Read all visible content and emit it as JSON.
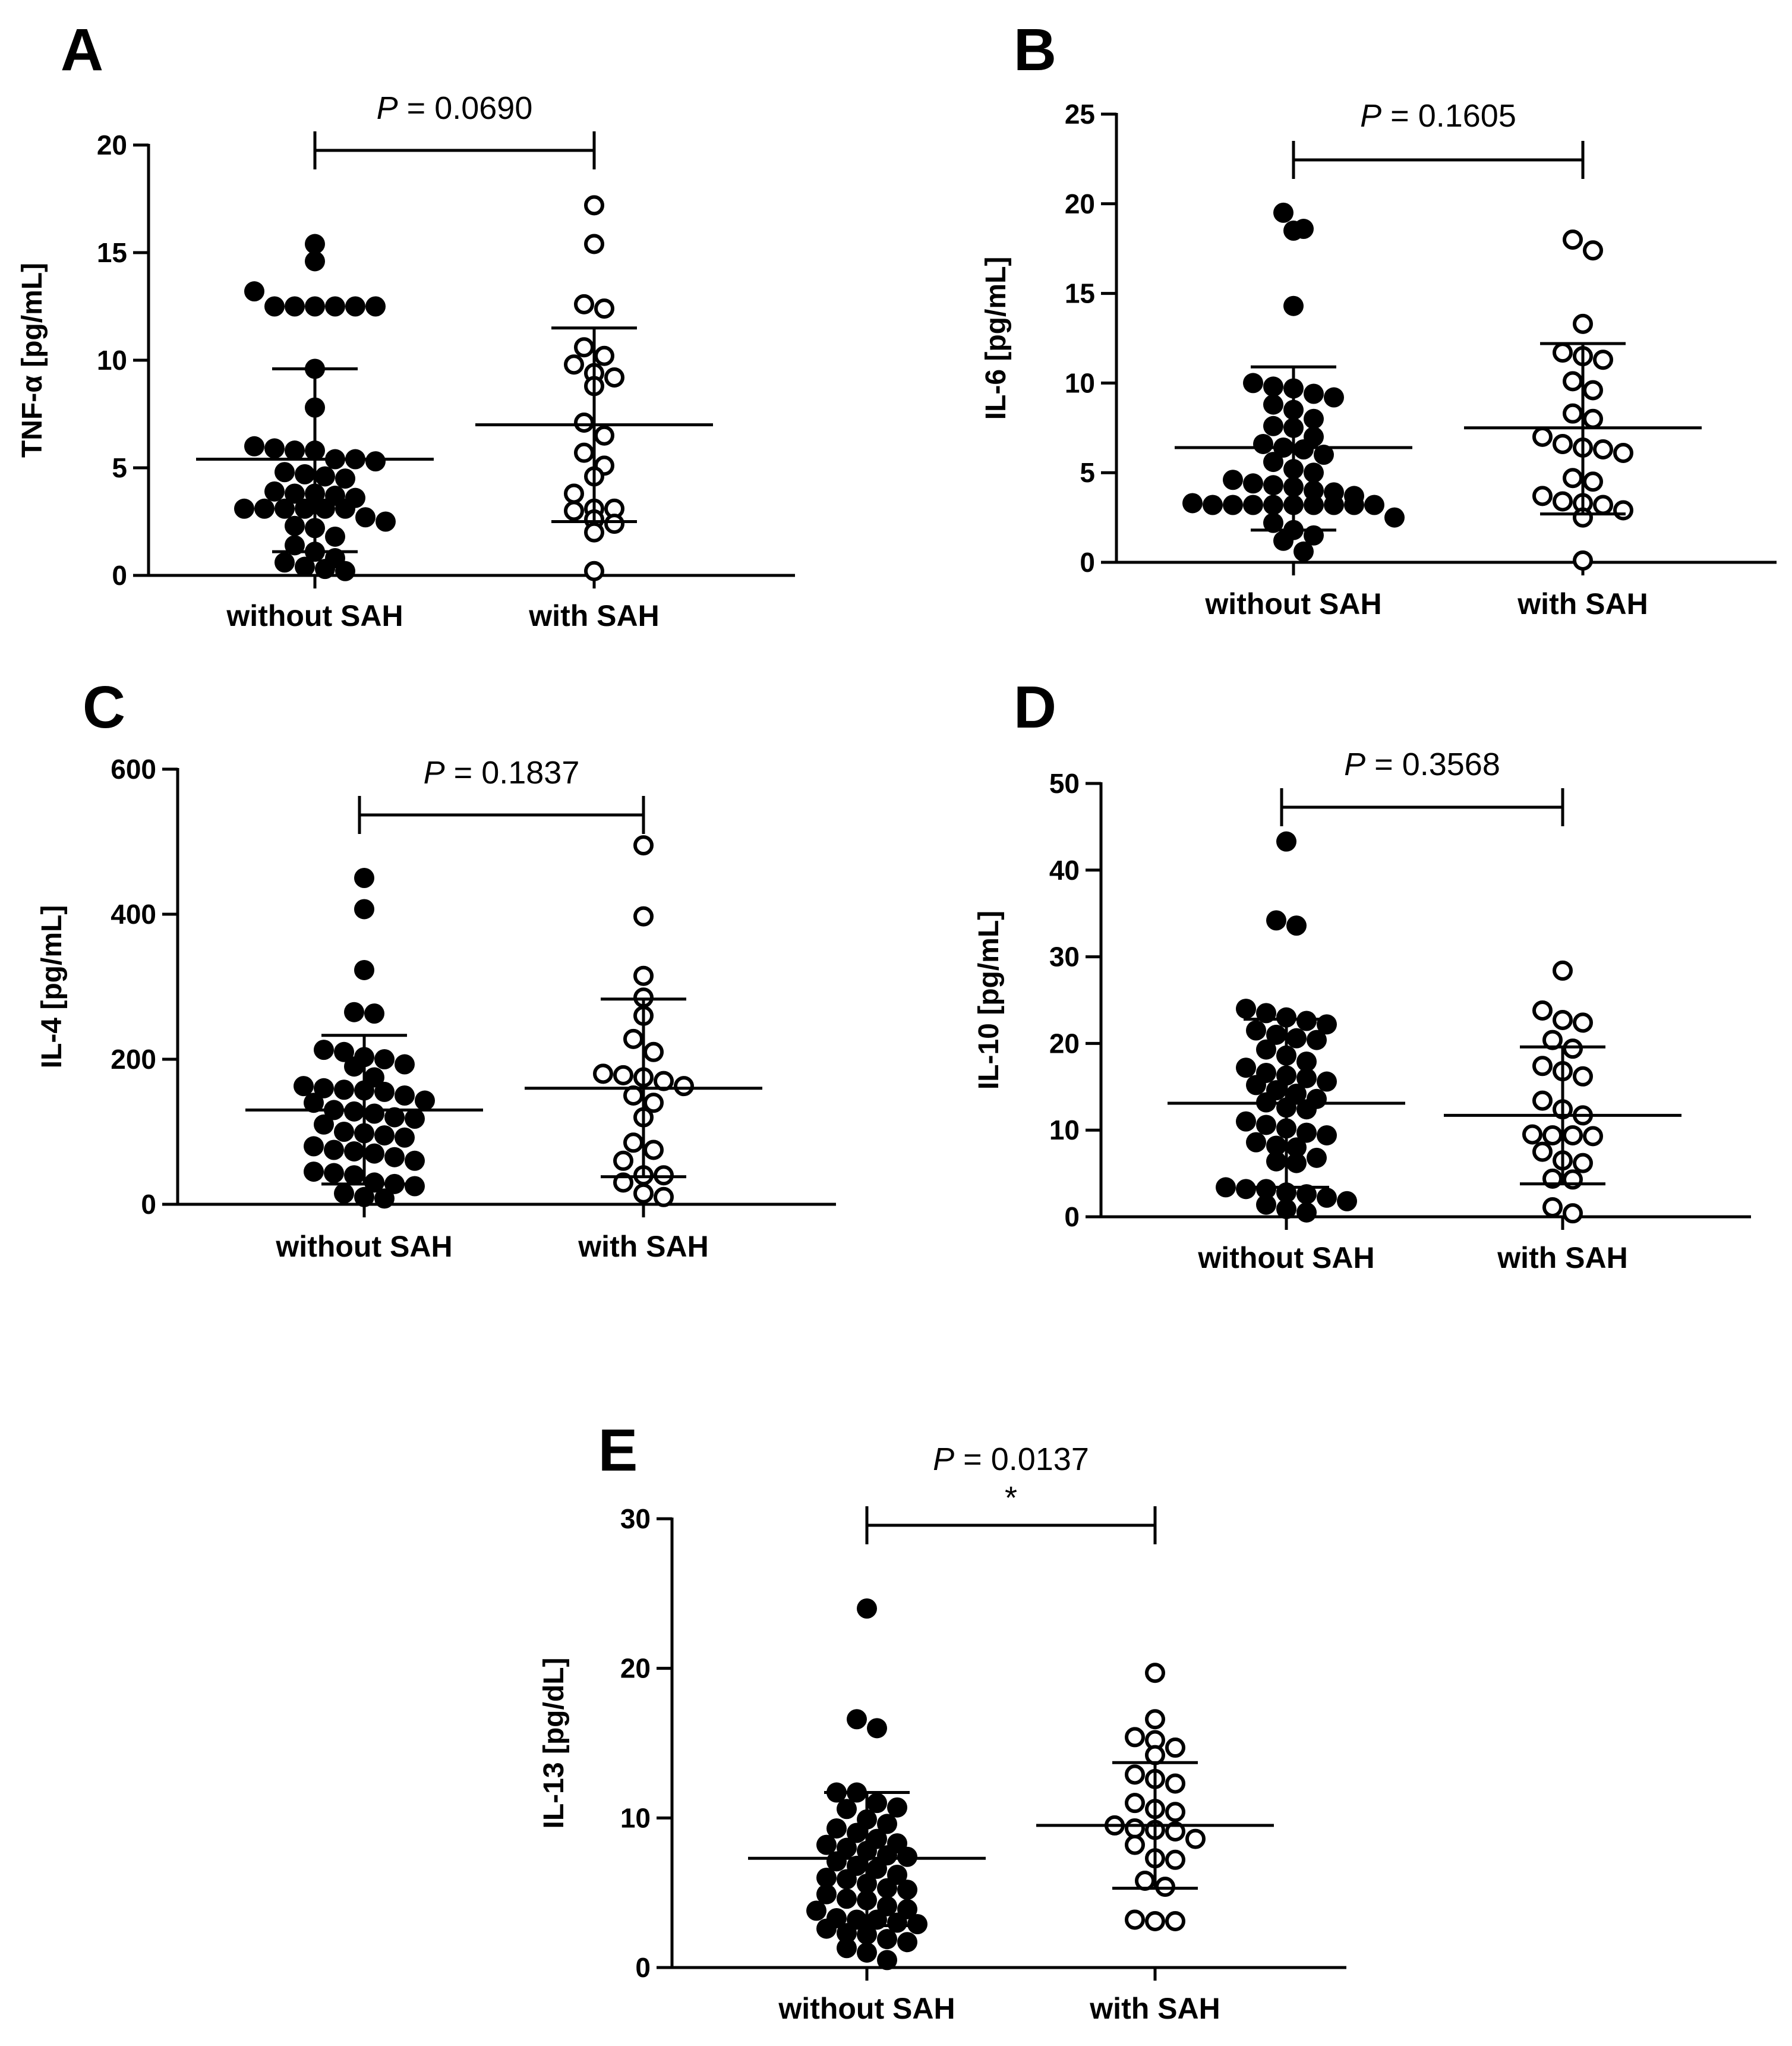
{
  "chart_data": [
    {
      "type": "scatter",
      "panel": "A",
      "ylabel": "TNF-α [pg/mL]",
      "ylim": [
        0,
        20
      ],
      "yticks": [
        0,
        5,
        10,
        15,
        20
      ],
      "categories": [
        "without SAH",
        "with SAH"
      ],
      "p_value_prefix": "P",
      "p_value_text": " = 0.0690",
      "significance": "",
      "series": [
        {
          "name": "without SAH",
          "marker": "filled",
          "mean": 5.4,
          "sd_low": 1.1,
          "sd_high": 9.6,
          "values": [
            15.4,
            14.6,
            13.2,
            12.5,
            12.5,
            12.5,
            12.5,
            12.5,
            12.5,
            9.6,
            7.8,
            6.0,
            5.9,
            5.8,
            5.8,
            5.4,
            5.4,
            5.3,
            4.8,
            4.7,
            4.6,
            4.5,
            3.9,
            3.8,
            3.8,
            3.7,
            3.6,
            3.1,
            3.1,
            3.1,
            3.1,
            3.1,
            3.1,
            2.7,
            2.5,
            2.3,
            2.2,
            1.8,
            1.4,
            1.1,
            0.8,
            0.6,
            0.4,
            0.3,
            0.2
          ]
        },
        {
          "name": "with SAH",
          "marker": "open",
          "mean": 7.0,
          "sd_low": 2.5,
          "sd_high": 11.5,
          "values": [
            17.2,
            15.4,
            12.6,
            12.4,
            10.6,
            10.2,
            9.8,
            9.4,
            9.2,
            8.8,
            7.1,
            6.5,
            5.7,
            5.1,
            4.6,
            3.8,
            3.1,
            3.1,
            3.0,
            2.6,
            2.4,
            2.0,
            0.2
          ]
        }
      ]
    },
    {
      "type": "scatter",
      "panel": "B",
      "ylabel": "IL-6 [pg/mL]",
      "ylim": [
        0,
        25
      ],
      "yticks": [
        0,
        5,
        10,
        15,
        20,
        25
      ],
      "categories": [
        "without SAH",
        "with SAH"
      ],
      "p_value_prefix": "P",
      "p_value_text": " = 0.1605",
      "significance": "",
      "series": [
        {
          "name": "without SAH",
          "marker": "filled",
          "mean": 6.4,
          "sd_low": 1.8,
          "sd_high": 10.9,
          "values": [
            19.5,
            18.6,
            18.5,
            14.3,
            10.0,
            9.8,
            9.7,
            9.4,
            9.2,
            8.8,
            8.5,
            8.0,
            7.6,
            7.5,
            7.0,
            6.6,
            6.4,
            6.3,
            6.0,
            5.6,
            5.2,
            5.0,
            4.6,
            4.4,
            4.3,
            4.2,
            4.0,
            3.9,
            3.7,
            3.3,
            3.2,
            3.2,
            3.2,
            3.2,
            3.2,
            3.2,
            3.2,
            3.2,
            3.2,
            2.5,
            2.2,
            1.8,
            1.5,
            1.2,
            0.6
          ]
        },
        {
          "name": "with SAH",
          "marker": "open",
          "mean": 7.5,
          "sd_low": 2.7,
          "sd_high": 12.2,
          "values": [
            18.0,
            17.4,
            13.3,
            11.7,
            11.5,
            11.3,
            10.1,
            9.6,
            8.3,
            8.0,
            7.0,
            6.6,
            6.4,
            6.3,
            6.1,
            4.7,
            4.5,
            3.7,
            3.4,
            3.3,
            3.2,
            2.9,
            2.5,
            0.1
          ]
        }
      ]
    },
    {
      "type": "scatter",
      "panel": "C",
      "ylabel": "IL-4 [pg/mL]",
      "ylim": [
        0,
        600
      ],
      "yticks": [
        0,
        200,
        400,
        600
      ],
      "categories": [
        "without SAH",
        "with SAH"
      ],
      "p_value_prefix": "P",
      "p_value_text": " = 0.1837",
      "significance": "",
      "series": [
        {
          "name": "without SAH",
          "marker": "filled",
          "mean": 130,
          "sd_low": 28,
          "sd_high": 233,
          "values": [
            450,
            407,
            323,
            265,
            263,
            213,
            210,
            203,
            200,
            193,
            190,
            175,
            163,
            160,
            158,
            157,
            155,
            150,
            143,
            140,
            130,
            128,
            125,
            120,
            118,
            110,
            100,
            98,
            95,
            92,
            80,
            75,
            73,
            70,
            65,
            60,
            45,
            43,
            40,
            30,
            28,
            25,
            15,
            10,
            8
          ]
        },
        {
          "name": "with SAH",
          "marker": "open",
          "mean": 160,
          "sd_low": 38,
          "sd_high": 283,
          "values": [
            495,
            397,
            315,
            285,
            260,
            228,
            210,
            180,
            178,
            175,
            170,
            163,
            150,
            140,
            120,
            85,
            75,
            60,
            40,
            40,
            30,
            15,
            10
          ]
        }
      ]
    },
    {
      "type": "scatter",
      "panel": "D",
      "ylabel": "IL-10 [pg/mL]",
      "ylim": [
        0,
        50
      ],
      "yticks": [
        0,
        10,
        20,
        30,
        40,
        50
      ],
      "categories": [
        "without SAH",
        "with SAH"
      ],
      "p_value_prefix": "P",
      "p_value_text": " = 0.3568",
      "significance": "",
      "series": [
        {
          "name": "without SAH",
          "marker": "filled",
          "mean": 13.1,
          "sd_low": 3.4,
          "sd_high": 22.8,
          "values": [
            43.3,
            34.2,
            33.6,
            24.0,
            23.5,
            23.0,
            22.6,
            22.2,
            21.5,
            21.0,
            20.6,
            20.4,
            19.3,
            18.6,
            17.9,
            17.2,
            16.6,
            16.3,
            16.0,
            15.6,
            15.2,
            14.6,
            14.2,
            13.6,
            13.2,
            12.6,
            12.4,
            11.0,
            10.6,
            10.2,
            9.7,
            9.4,
            8.6,
            8.2,
            8.0,
            6.8,
            6.4,
            6.2,
            3.4,
            3.2,
            3.2,
            2.8,
            2.6,
            2.2,
            1.8,
            1.4,
            0.9,
            0.5
          ]
        },
        {
          "name": "with SAH",
          "marker": "open",
          "mean": 11.7,
          "sd_low": 3.8,
          "sd_high": 19.6,
          "values": [
            28.4,
            23.8,
            22.7,
            22.4,
            20.4,
            19.4,
            17.4,
            16.8,
            16.2,
            13.4,
            12.4,
            11.7,
            9.5,
            9.4,
            9.4,
            9.3,
            7.5,
            6.5,
            6.2,
            4.4,
            4.3,
            1.1,
            0.4
          ]
        }
      ]
    },
    {
      "type": "scatter",
      "panel": "E",
      "ylabel": "IL-13 [pg/dL]",
      "ylim": [
        0,
        30
      ],
      "yticks": [
        0,
        10,
        20,
        30
      ],
      "categories": [
        "without SAH",
        "with SAH"
      ],
      "p_value_prefix": "P",
      "p_value_text": " = 0.0137",
      "significance": "*",
      "series": [
        {
          "name": "without SAH",
          "marker": "filled",
          "mean": 7.3,
          "sd_low": 2.8,
          "sd_high": 11.7,
          "values": [
            24.0,
            16.6,
            16.0,
            11.7,
            11.7,
            11.0,
            10.7,
            10.6,
            9.9,
            9.6,
            9.3,
            9.0,
            8.6,
            8.3,
            8.2,
            8.0,
            7.8,
            7.5,
            7.4,
            7.1,
            6.8,
            6.6,
            6.2,
            6.0,
            5.9,
            5.6,
            5.3,
            5.2,
            4.9,
            4.6,
            4.5,
            4.1,
            3.9,
            3.8,
            3.3,
            3.2,
            3.2,
            3.0,
            2.9,
            2.6,
            2.3,
            2.2,
            1.9,
            1.7,
            1.3,
            1.0,
            0.5
          ]
        },
        {
          "name": "with SAH",
          "marker": "open",
          "mean": 9.5,
          "sd_low": 5.3,
          "sd_high": 13.7,
          "values": [
            19.7,
            16.6,
            15.4,
            15.2,
            14.7,
            14.2,
            12.9,
            12.6,
            12.3,
            11.0,
            10.6,
            10.4,
            9.5,
            9.3,
            9.2,
            9.1,
            8.6,
            8.2,
            7.3,
            7.2,
            5.8,
            5.4,
            3.2,
            3.1,
            3.1
          ]
        }
      ]
    }
  ]
}
